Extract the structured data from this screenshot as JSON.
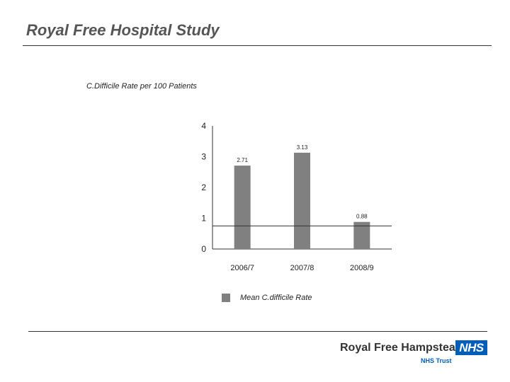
{
  "slide": {
    "title": "Royal Free Hospital Study"
  },
  "chart_data": {
    "type": "bar",
    "title": "C.Difficile Rate per 100 Patients",
    "categories": [
      "2006/7",
      "2007/8",
      "2008/9"
    ],
    "series": [
      {
        "name": "Mean C.difficile Rate",
        "values": [
          2.71,
          3.13,
          0.88
        ],
        "labels": [
          "2.71",
          "3.13",
          "0.88"
        ]
      }
    ],
    "yticks": [
      "0",
      "1",
      "2",
      "3",
      "4"
    ],
    "ylim": [
      0,
      4
    ],
    "reference_line": 0.75,
    "bar_color": "#808080",
    "grid": false,
    "legend_position": "bottom"
  },
  "branding": {
    "org_name": "Royal Free Hampstead",
    "nhs_logo": "NHS",
    "trust_label": "NHS Trust",
    "nhs_blue": "#005EB8"
  }
}
